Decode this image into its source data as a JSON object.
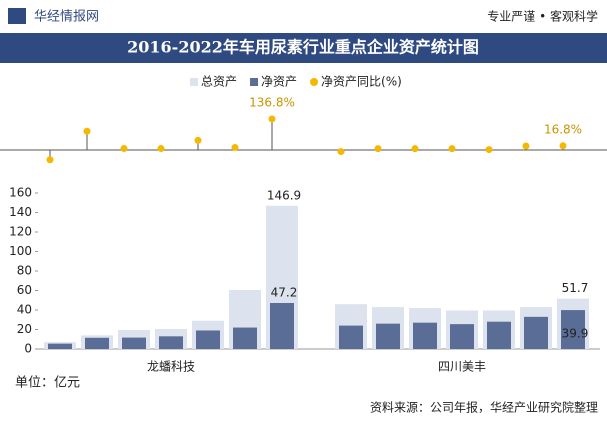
{
  "header": {
    "brand": "华经情报网",
    "slogan": "专业严谨 • 客观科学"
  },
  "chart_data": {
    "type": "bar",
    "title": "2016-2022年车用尿素行业重点企业资产统计图",
    "categories": [
      null,
      null,
      null,
      null,
      null,
      null,
      null,
      null,
      null,
      null,
      null,
      null,
      null,
      null
    ],
    "group_labels": [
      "龙蟠科技",
      "四川美丰"
    ],
    "series": [
      {
        "name": "总资产",
        "color": "#dde3ee",
        "values": [
          7,
          14,
          19.5,
          20.5,
          29,
          60.5,
          146.9,
          46,
          43,
          42,
          39.5,
          39.5,
          43,
          51.7
        ],
        "value_labels": [
          null,
          null,
          null,
          null,
          null,
          null,
          "146.9",
          null,
          null,
          null,
          null,
          null,
          null,
          "51.7"
        ]
      },
      {
        "name": "净资产",
        "color": "#5a6d96",
        "values": [
          5.5,
          11.5,
          11.7,
          13,
          19,
          22,
          47.2,
          24,
          26,
          27,
          25.5,
          28,
          33,
          39.9
        ],
        "value_labels": [
          null,
          null,
          null,
          null,
          null,
          null,
          "47.2",
          null,
          null,
          null,
          null,
          null,
          null,
          "39.9"
        ]
      },
      {
        "name": "净资产同比(%)",
        "type": "lollipop",
        "axis": "y2",
        "color": "#f5b800",
        "values": [
          -45.6,
          82,
          4.6,
          4.6,
          41,
          9,
          136.8,
          -9,
          4,
          4,
          4,
          0,
          16,
          16.8
        ],
        "value_labels": [
          null,
          null,
          null,
          null,
          null,
          null,
          "136.8%",
          null,
          null,
          null,
          null,
          null,
          null,
          "16.8%"
        ]
      }
    ],
    "ylim": [
      0,
      160
    ],
    "yticks": [
      0,
      20,
      40,
      60,
      80,
      100,
      120,
      140,
      160
    ],
    "y2lim": [
      -60,
      150
    ],
    "unit": "单位：亿元",
    "source": "资料来源：公司年报，华经产业研究院整理"
  }
}
